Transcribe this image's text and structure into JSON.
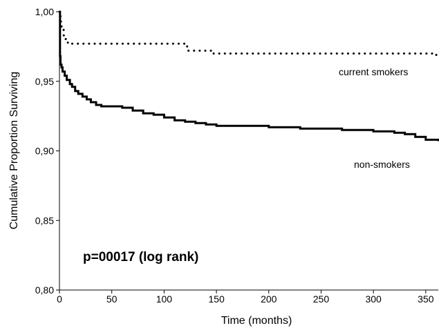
{
  "chart_data": {
    "type": "line",
    "title": "",
    "xlabel": "Time (months)",
    "ylabel": "Cumulative Proportion Surviving",
    "xlim": [
      0,
      362
    ],
    "ylim": [
      0.8,
      1.0
    ],
    "xticks": [
      0,
      50,
      100,
      150,
      200,
      250,
      300,
      350
    ],
    "xtick_labels": [
      "0",
      "50",
      "100",
      "150",
      "200",
      "250",
      "300",
      "350"
    ],
    "yticks": [
      0.8,
      0.85,
      0.9,
      0.95,
      1.0
    ],
    "ytick_labels": [
      "0,80",
      "0,85",
      "0,90",
      "0,95",
      "1,00"
    ],
    "grid": false,
    "annotation": "p=00017 (log rank)",
    "series": [
      {
        "name": "current smokers",
        "style": "dotted",
        "x": [
          0,
          1,
          2,
          4,
          6,
          8,
          12,
          20,
          118,
          122,
          145,
          358,
          362
        ],
        "y": [
          1.0,
          0.993,
          0.987,
          0.983,
          0.979,
          0.977,
          0.977,
          0.977,
          0.977,
          0.972,
          0.97,
          0.969,
          0.967
        ]
      },
      {
        "name": "non-smokers",
        "style": "solid",
        "x": [
          0,
          0.5,
          1,
          2,
          3,
          5,
          7,
          10,
          12,
          15,
          18,
          22,
          26,
          30,
          35,
          40,
          50,
          60,
          70,
          80,
          90,
          100,
          110,
          120,
          130,
          140,
          150,
          180,
          200,
          230,
          270,
          300,
          320,
          330,
          340,
          350,
          362
        ],
        "y": [
          1.0,
          0.968,
          0.962,
          0.96,
          0.957,
          0.954,
          0.951,
          0.948,
          0.946,
          0.943,
          0.941,
          0.939,
          0.937,
          0.935,
          0.933,
          0.932,
          0.932,
          0.931,
          0.929,
          0.927,
          0.926,
          0.924,
          0.922,
          0.921,
          0.92,
          0.919,
          0.918,
          0.918,
          0.917,
          0.916,
          0.915,
          0.914,
          0.913,
          0.912,
          0.91,
          0.908,
          0.907
        ]
      }
    ]
  }
}
